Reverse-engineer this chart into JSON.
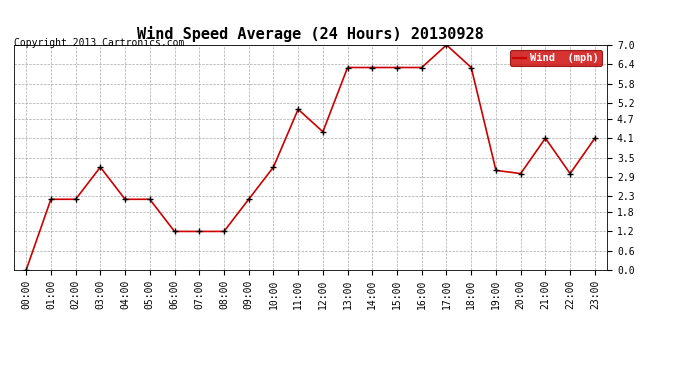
{
  "title": "Wind Speed Average (24 Hours) 20130928",
  "copyright": "Copyright 2013 Cartronics.com",
  "legend_label": "Wind  (mph)",
  "x_labels": [
    "00:00",
    "01:00",
    "02:00",
    "03:00",
    "04:00",
    "05:00",
    "06:00",
    "07:00",
    "08:00",
    "09:00",
    "10:00",
    "11:00",
    "12:00",
    "13:00",
    "14:00",
    "15:00",
    "16:00",
    "17:00",
    "18:00",
    "19:00",
    "20:00",
    "21:00",
    "22:00",
    "23:00"
  ],
  "y_values": [
    0.0,
    2.2,
    2.2,
    3.2,
    2.2,
    2.2,
    1.2,
    1.2,
    1.2,
    2.2,
    3.2,
    5.0,
    4.3,
    6.3,
    6.3,
    6.3,
    6.3,
    7.0,
    6.3,
    3.1,
    3.0,
    4.1,
    3.0,
    4.1
  ],
  "line_color": "#cc0000",
  "marker": "+",
  "marker_color": "#000000",
  "marker_size": 5,
  "line_width": 1.2,
  "grid_color": "#aaaaaa",
  "background_color": "#ffffff",
  "plot_bg_color": "#ffffff",
  "y_min": 0.0,
  "y_max": 7.0,
  "y_ticks": [
    0.0,
    0.6,
    1.2,
    1.8,
    2.3,
    2.9,
    3.5,
    4.1,
    4.7,
    5.2,
    5.8,
    6.4,
    7.0
  ],
  "legend_bg": "#cc0000",
  "legend_text_color": "#ffffff",
  "title_fontsize": 11,
  "tick_fontsize": 7,
  "copyright_fontsize": 7,
  "legend_fontsize": 7.5
}
